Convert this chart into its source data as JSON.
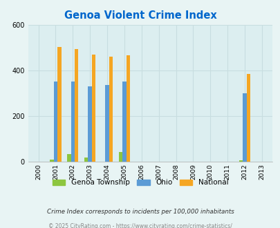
{
  "title": "Genoa Violent Crime Index",
  "years": [
    2000,
    2001,
    2002,
    2003,
    2004,
    2005,
    2006,
    2007,
    2008,
    2009,
    2010,
    2011,
    2012,
    2013
  ],
  "genoa": [
    0,
    10,
    35,
    18,
    0,
    42,
    0,
    0,
    0,
    0,
    0,
    0,
    8,
    0
  ],
  "ohio": [
    0,
    352,
    352,
    330,
    338,
    352,
    0,
    0,
    0,
    0,
    0,
    0,
    300,
    0
  ],
  "national": [
    0,
    504,
    494,
    472,
    463,
    469,
    0,
    0,
    0,
    0,
    0,
    0,
    387,
    0
  ],
  "ylim": [
    0,
    600
  ],
  "yticks": [
    0,
    200,
    400,
    600
  ],
  "bar_width": 0.22,
  "color_genoa": "#8dc63f",
  "color_ohio": "#5b9bd5",
  "color_national": "#f5a623",
  "bg_color": "#e8f4f4",
  "plot_bg": "#dceef0",
  "title_color": "#0066cc",
  "footer1": "Crime Index corresponds to incidents per 100,000 inhabitants",
  "footer2": "© 2025 CityRating.com - https://www.cityrating.com/crime-statistics/",
  "legend_labels": [
    "Genoa Township",
    "Ohio",
    "National"
  ],
  "grid_color": "#c8dde0"
}
